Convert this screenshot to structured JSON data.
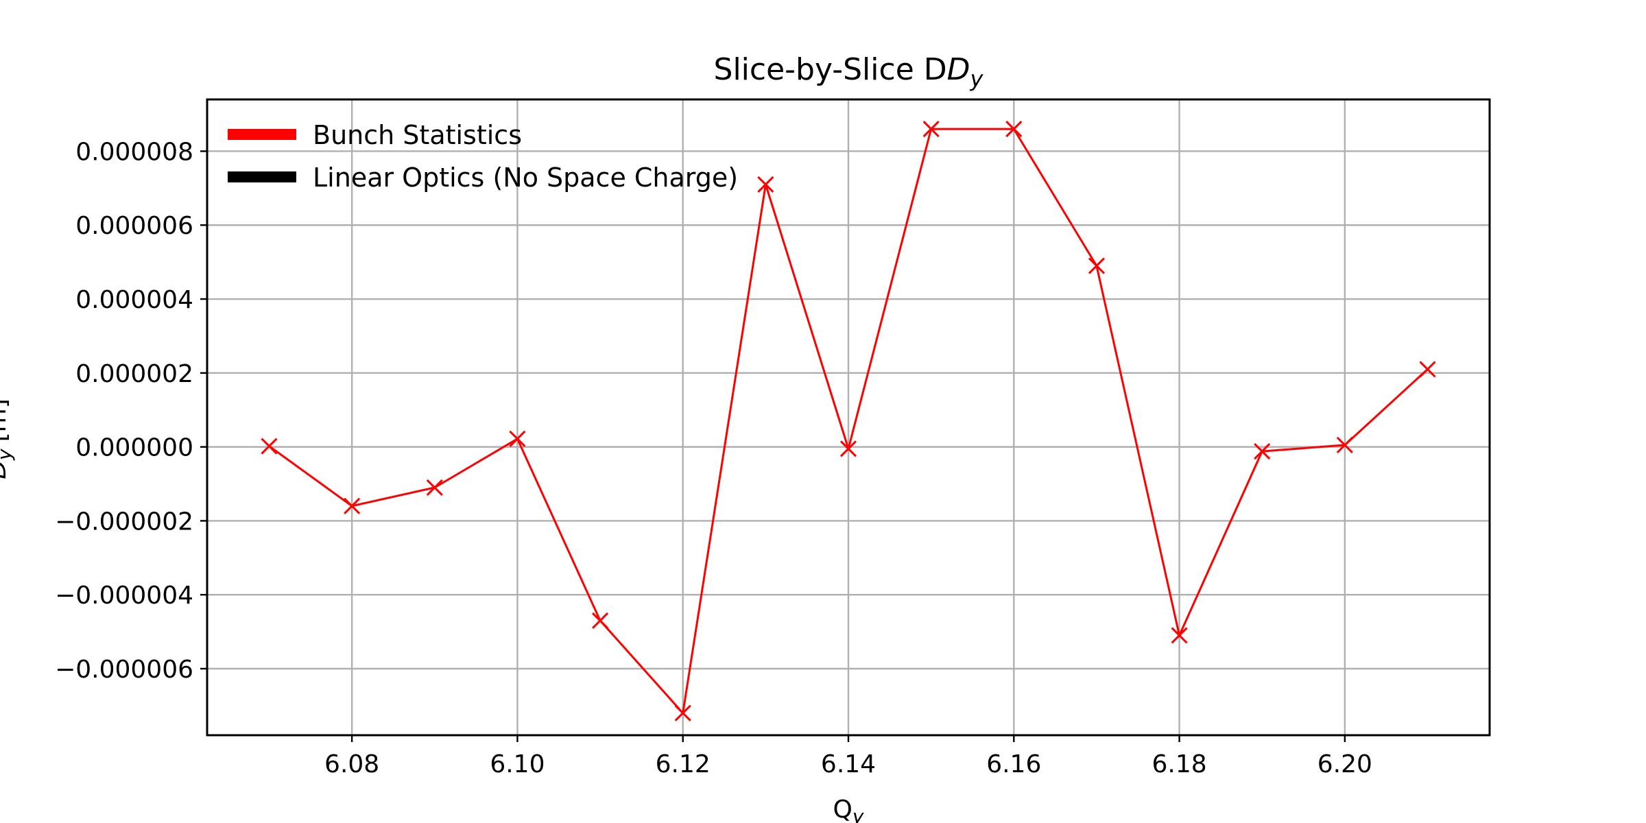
{
  "chart_data": {
    "type": "line",
    "title": "Slice-by-Slice D",
    "title_subscript": "y",
    "xlabel": "Q",
    "xlabel_subscript": "y",
    "ylabel": "D",
    "ylabel_subscript": "y",
    "ylabel_unit": "[m]",
    "xlim": [
      6.0625,
      6.2175
    ],
    "ylim": [
      -7.8e-06,
      9.4e-06
    ],
    "x_ticks": [
      6.08,
      6.1,
      6.12,
      6.14,
      6.16,
      6.18,
      6.2
    ],
    "x_tick_labels": [
      "6.08",
      "6.10",
      "6.12",
      "6.14",
      "6.16",
      "6.18",
      "6.20"
    ],
    "y_ticks": [
      -6e-06,
      -4e-06,
      -2e-06,
      0.0,
      2e-06,
      4e-06,
      6e-06,
      8e-06
    ],
    "y_tick_labels": [
      "−0.000006",
      "−0.000004",
      "−0.000002",
      "0.000000",
      "0.000002",
      "0.000004",
      "0.000006",
      "0.000008"
    ],
    "grid": true,
    "legend_position": "top-left",
    "legend": [
      {
        "label": "Bunch Statistics",
        "color": "#ff0000"
      },
      {
        "label": "Linear Optics (No Space Charge)",
        "color": "#000000"
      }
    ],
    "series": [
      {
        "name": "Bunch Statistics",
        "color": "#ff0000",
        "marker": "x",
        "x": [
          6.07,
          6.08,
          6.09,
          6.1,
          6.11,
          6.12,
          6.13,
          6.14,
          6.15,
          6.16,
          6.17,
          6.18,
          6.19,
          6.2,
          6.21
        ],
        "y": [
          2e-08,
          -1.6e-06,
          -1.1e-06,
          2.2e-07,
          -4.7e-06,
          -7.2e-06,
          7.1e-06,
          -5e-08,
          8.6e-06,
          8.6e-06,
          4.9e-06,
          -5.1e-06,
          -1.2e-07,
          5e-08,
          2.1e-06
        ]
      }
    ]
  }
}
